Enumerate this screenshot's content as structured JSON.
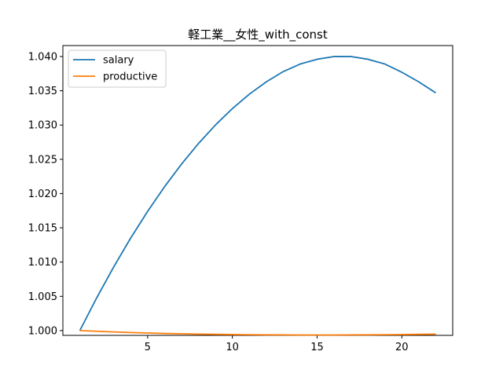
{
  "chart_data": {
    "type": "line",
    "title": "軽工業__女性_with_const",
    "xlabel": "",
    "ylabel": "",
    "xlim": [
      0.0,
      23.0
    ],
    "ylim": [
      0.9993,
      1.0416
    ],
    "xticks": [
      5,
      10,
      15,
      20
    ],
    "yticks": [
      1.0,
      1.005,
      1.01,
      1.015,
      1.02,
      1.025,
      1.03,
      1.035,
      1.04
    ],
    "ytick_labels": [
      "1.000",
      "1.005",
      "1.010",
      "1.015",
      "1.020",
      "1.025",
      "1.030",
      "1.035",
      "1.040"
    ],
    "xtick_labels": [
      "5",
      "10",
      "15",
      "20"
    ],
    "legend_position": "top-left",
    "grid": false,
    "x": [
      1,
      2,
      3,
      4,
      5,
      6,
      7,
      8,
      9,
      10,
      11,
      12,
      13,
      14,
      15,
      16,
      17,
      18,
      19,
      20,
      21,
      22
    ],
    "series": [
      {
        "name": "salary",
        "color": "#1f77b4",
        "values": [
          1.0,
          1.0048,
          1.0093,
          1.0135,
          1.0174,
          1.021,
          1.0243,
          1.0273,
          1.03,
          1.0324,
          1.0345,
          1.0363,
          1.0378,
          1.0389,
          1.0396,
          1.04,
          1.04,
          1.0396,
          1.0389,
          1.0377,
          1.0363,
          1.0347
        ]
      },
      {
        "name": "productive",
        "color": "#ff7f0e",
        "values": [
          1.0,
          0.9999,
          0.9998,
          0.99972,
          0.99964,
          0.99958,
          0.99953,
          0.99948,
          0.99945,
          0.99942,
          0.9994,
          0.99938,
          0.99937,
          0.99936,
          0.99936,
          0.99936,
          0.99937,
          0.99938,
          0.9994,
          0.99942,
          0.99945,
          0.99948
        ]
      }
    ]
  }
}
